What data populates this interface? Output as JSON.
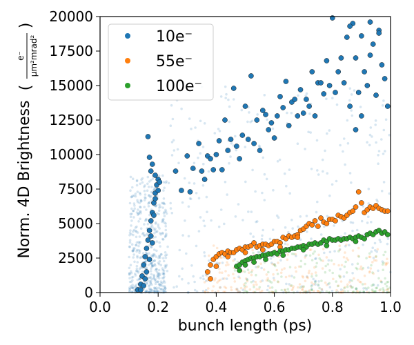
{
  "chart_data": {
    "type": "scatter",
    "xlabel": "bunch length (ps)",
    "ylabel": "Norm. 4D Brightness",
    "ylabel_unit_numerator": "e⁻",
    "ylabel_unit_denominator": "μm²mrad²",
    "xlim": [
      0.0,
      1.0
    ],
    "ylim": [
      0,
      20000
    ],
    "x_ticks": [
      "0.0",
      "0.2",
      "0.4",
      "0.6",
      "0.8",
      "1.0"
    ],
    "y_ticks": [
      "0",
      "2500",
      "5000",
      "7500",
      "10000",
      "12500",
      "15000",
      "17500",
      "20000"
    ],
    "grid": false,
    "legend_position": "top-left",
    "series": [
      {
        "name": "10e⁻",
        "color": "#1f77b4",
        "points": [
          [
            0.13,
            200
          ],
          [
            0.14,
            600
          ],
          [
            0.145,
            1200
          ],
          [
            0.15,
            2000
          ],
          [
            0.155,
            2600
          ],
          [
            0.16,
            3200
          ],
          [
            0.165,
            3800
          ],
          [
            0.17,
            4500
          ],
          [
            0.175,
            5200
          ],
          [
            0.18,
            5800
          ],
          [
            0.185,
            6500
          ],
          [
            0.19,
            7200
          ],
          [
            0.195,
            7800
          ],
          [
            0.2,
            8200
          ],
          [
            0.16,
            1500
          ],
          [
            0.17,
            2400
          ],
          [
            0.18,
            3600
          ],
          [
            0.175,
            4100
          ],
          [
            0.185,
            5600
          ],
          [
            0.19,
            6800
          ],
          [
            0.205,
            8000
          ],
          [
            0.2,
            7400
          ],
          [
            0.165,
            11300
          ],
          [
            0.17,
            9800
          ],
          [
            0.18,
            9300
          ],
          [
            0.19,
            8500
          ],
          [
            0.175,
            8800
          ],
          [
            0.155,
            1000
          ],
          [
            0.15,
            500
          ],
          [
            0.14,
            200
          ],
          [
            0.26,
            8800
          ],
          [
            0.28,
            7400
          ],
          [
            0.3,
            9900
          ],
          [
            0.31,
            7300
          ],
          [
            0.32,
            9000
          ],
          [
            0.34,
            10800
          ],
          [
            0.35,
            8800
          ],
          [
            0.36,
            8200
          ],
          [
            0.37,
            9900
          ],
          [
            0.38,
            9700
          ],
          [
            0.39,
            8900
          ],
          [
            0.4,
            10000
          ],
          [
            0.41,
            11000
          ],
          [
            0.42,
            8900
          ],
          [
            0.43,
            12500
          ],
          [
            0.44,
            10300
          ],
          [
            0.45,
            11100
          ],
          [
            0.46,
            14800
          ],
          [
            0.47,
            10600
          ],
          [
            0.48,
            9700
          ],
          [
            0.49,
            11400
          ],
          [
            0.5,
            13500
          ],
          [
            0.51,
            11100
          ],
          [
            0.52,
            15700
          ],
          [
            0.53,
            10800
          ],
          [
            0.54,
            12500
          ],
          [
            0.55,
            10300
          ],
          [
            0.56,
            13200
          ],
          [
            0.57,
            12900
          ],
          [
            0.58,
            11800
          ],
          [
            0.59,
            12300
          ],
          [
            0.6,
            11200
          ],
          [
            0.61,
            12800
          ],
          [
            0.62,
            14200
          ],
          [
            0.63,
            13400
          ],
          [
            0.64,
            15300
          ],
          [
            0.65,
            12100
          ],
          [
            0.66,
            13800
          ],
          [
            0.67,
            14000
          ],
          [
            0.68,
            12800
          ],
          [
            0.69,
            14700
          ],
          [
            0.7,
            13000
          ],
          [
            0.71,
            14000
          ],
          [
            0.72,
            13500
          ],
          [
            0.73,
            16000
          ],
          [
            0.74,
            12800
          ],
          [
            0.75,
            15200
          ],
          [
            0.76,
            15200
          ],
          [
            0.77,
            14400
          ],
          [
            0.78,
            16800
          ],
          [
            0.79,
            15000
          ],
          [
            0.8,
            19900
          ],
          [
            0.81,
            14500
          ],
          [
            0.82,
            16000
          ],
          [
            0.83,
            17000
          ],
          [
            0.84,
            15200
          ],
          [
            0.85,
            18500
          ],
          [
            0.86,
            13500
          ],
          [
            0.87,
            19500
          ],
          [
            0.88,
            17000
          ],
          [
            0.89,
            14500
          ],
          [
            0.9,
            18600
          ],
          [
            0.91,
            16000
          ],
          [
            0.92,
            15000
          ],
          [
            0.93,
            17200
          ],
          [
            0.94,
            18000
          ],
          [
            0.95,
            14300
          ],
          [
            0.96,
            19000
          ],
          [
            0.97,
            16500
          ],
          [
            0.98,
            15500
          ],
          [
            0.99,
            13500
          ],
          [
            0.86,
            19300
          ],
          [
            0.93,
            19600
          ],
          [
            0.96,
            18800
          ],
          [
            0.88,
            11800
          ],
          [
            0.9,
            12800
          ]
        ]
      },
      {
        "name": "55e⁻",
        "color": "#ff7f0e",
        "points": [
          [
            0.37,
            1500
          ],
          [
            0.38,
            2000
          ],
          [
            0.39,
            2400
          ],
          [
            0.4,
            2600
          ],
          [
            0.41,
            2800
          ],
          [
            0.42,
            2900
          ],
          [
            0.43,
            2800
          ],
          [
            0.44,
            3000
          ],
          [
            0.45,
            2900
          ],
          [
            0.46,
            2900
          ],
          [
            0.47,
            3100
          ],
          [
            0.48,
            3200
          ],
          [
            0.49,
            3100
          ],
          [
            0.5,
            3300
          ],
          [
            0.51,
            3300
          ],
          [
            0.52,
            3400
          ],
          [
            0.53,
            3600
          ],
          [
            0.54,
            3300
          ],
          [
            0.55,
            3400
          ],
          [
            0.56,
            3500
          ],
          [
            0.57,
            3500
          ],
          [
            0.58,
            3400
          ],
          [
            0.59,
            3500
          ],
          [
            0.6,
            3700
          ],
          [
            0.61,
            3700
          ],
          [
            0.62,
            3600
          ],
          [
            0.63,
            4000
          ],
          [
            0.64,
            3900
          ],
          [
            0.65,
            4100
          ],
          [
            0.66,
            4000
          ],
          [
            0.67,
            4100
          ],
          [
            0.68,
            4200
          ],
          [
            0.69,
            4500
          ],
          [
            0.7,
            4600
          ],
          [
            0.71,
            4800
          ],
          [
            0.72,
            5000
          ],
          [
            0.73,
            4900
          ],
          [
            0.74,
            5200
          ],
          [
            0.75,
            4800
          ],
          [
            0.76,
            5400
          ],
          [
            0.77,
            5100
          ],
          [
            0.78,
            5000
          ],
          [
            0.79,
            5300
          ],
          [
            0.8,
            5300
          ],
          [
            0.81,
            5200
          ],
          [
            0.82,
            5600
          ],
          [
            0.83,
            5500
          ],
          [
            0.84,
            5400
          ],
          [
            0.85,
            5600
          ],
          [
            0.86,
            5800
          ],
          [
            0.87,
            5900
          ],
          [
            0.88,
            6200
          ],
          [
            0.89,
            7300
          ],
          [
            0.9,
            6500
          ],
          [
            0.91,
            5800
          ],
          [
            0.92,
            6000
          ],
          [
            0.93,
            6200
          ],
          [
            0.94,
            6100
          ],
          [
            0.95,
            6300
          ],
          [
            0.96,
            6100
          ],
          [
            0.97,
            6000
          ],
          [
            0.98,
            5900
          ],
          [
            0.99,
            5900
          ],
          [
            0.38,
            1000
          ],
          [
            0.4,
            1900
          ],
          [
            0.44,
            2600
          ],
          [
            0.5,
            2900
          ],
          [
            0.56,
            3100
          ],
          [
            0.62,
            3300
          ],
          [
            0.68,
            4000
          ]
        ]
      },
      {
        "name": "100e⁻",
        "color": "#2ca02c",
        "points": [
          [
            0.47,
            1900
          ],
          [
            0.48,
            2000
          ],
          [
            0.49,
            2200
          ],
          [
            0.5,
            2300
          ],
          [
            0.51,
            2400
          ],
          [
            0.52,
            2500
          ],
          [
            0.53,
            2500
          ],
          [
            0.54,
            2600
          ],
          [
            0.55,
            2600
          ],
          [
            0.56,
            2700
          ],
          [
            0.57,
            2700
          ],
          [
            0.58,
            2800
          ],
          [
            0.59,
            2800
          ],
          [
            0.6,
            2900
          ],
          [
            0.61,
            2800
          ],
          [
            0.62,
            3000
          ],
          [
            0.63,
            3000
          ],
          [
            0.64,
            3100
          ],
          [
            0.65,
            3100
          ],
          [
            0.66,
            3200
          ],
          [
            0.67,
            3200
          ],
          [
            0.68,
            3300
          ],
          [
            0.69,
            3300
          ],
          [
            0.7,
            3400
          ],
          [
            0.71,
            3300
          ],
          [
            0.72,
            3500
          ],
          [
            0.73,
            3500
          ],
          [
            0.74,
            3600
          ],
          [
            0.75,
            3500
          ],
          [
            0.76,
            3600
          ],
          [
            0.77,
            3800
          ],
          [
            0.78,
            3700
          ],
          [
            0.79,
            3900
          ],
          [
            0.8,
            3800
          ],
          [
            0.81,
            3800
          ],
          [
            0.82,
            3900
          ],
          [
            0.83,
            3800
          ],
          [
            0.84,
            3900
          ],
          [
            0.85,
            3900
          ],
          [
            0.86,
            4000
          ],
          [
            0.87,
            3900
          ],
          [
            0.88,
            4000
          ],
          [
            0.89,
            4100
          ],
          [
            0.9,
            4000
          ],
          [
            0.91,
            3900
          ],
          [
            0.92,
            4200
          ],
          [
            0.93,
            4300
          ],
          [
            0.94,
            4200
          ],
          [
            0.95,
            4400
          ],
          [
            0.96,
            4500
          ],
          [
            0.97,
            4300
          ],
          [
            0.98,
            4400
          ],
          [
            0.99,
            4200
          ],
          [
            0.48,
            1600
          ],
          [
            0.5,
            2000
          ],
          [
            0.53,
            2200
          ],
          [
            0.57,
            2400
          ],
          [
            0.63,
            2700
          ],
          [
            0.7,
            3100
          ],
          [
            0.78,
            3400
          ],
          [
            0.88,
            3700
          ]
        ]
      }
    ]
  }
}
